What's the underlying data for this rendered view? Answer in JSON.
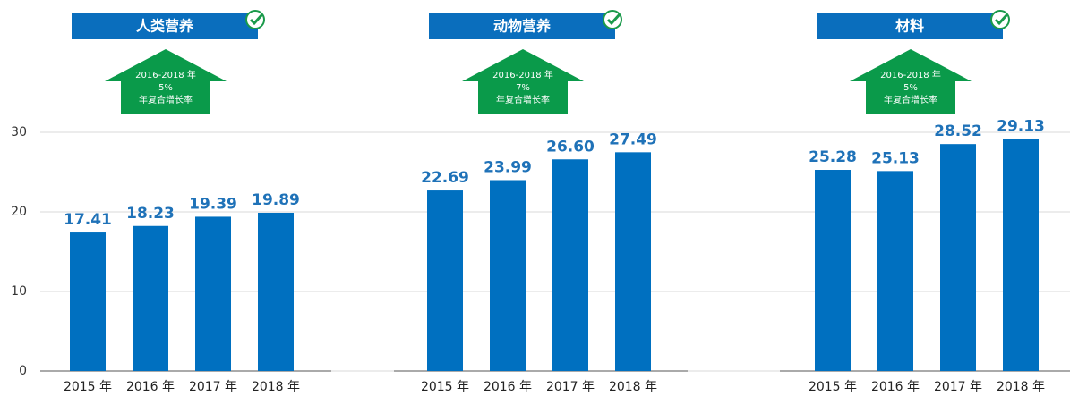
{
  "chart_data": [
    {
      "type": "bar",
      "title": "人类营养",
      "growth": {
        "period": "2016-2018 年",
        "rate": "5%",
        "label": "年复合增长率"
      },
      "categories": [
        "2015 年",
        "2016 年",
        "2017 年",
        "2018 年"
      ],
      "values": [
        17.41,
        18.23,
        19.39,
        19.89
      ],
      "color": "#0070c0",
      "ylim": [
        0,
        30
      ],
      "yticks": [
        0,
        10,
        20,
        30
      ],
      "grid": true
    },
    {
      "type": "bar",
      "title": "动物营养",
      "growth": {
        "period": "2016-2018 年",
        "rate": "7%",
        "label": "年复合增长率"
      },
      "categories": [
        "2015 年",
        "2016 年",
        "2017 年",
        "2018 年"
      ],
      "values": [
        22.69,
        23.99,
        26.6,
        27.49
      ],
      "value_labels": [
        "22.69",
        "23.99",
        "26.60",
        "27.49"
      ],
      "color": "#0070c0",
      "ylim": [
        0,
        30
      ],
      "yticks": [
        0,
        10,
        20,
        30
      ],
      "grid": true
    },
    {
      "type": "bar",
      "title": "材料",
      "growth": {
        "period": "2016-2018 年",
        "rate": "5%",
        "label": "年复合增长率"
      },
      "categories": [
        "2015 年",
        "2016 年",
        "2017 年",
        "2018 年"
      ],
      "values": [
        25.28,
        25.13,
        28.52,
        29.13
      ],
      "color": "#0070c0",
      "ylim": [
        0,
        30
      ],
      "yticks": [
        0,
        10,
        20,
        30
      ],
      "grid": true
    }
  ]
}
